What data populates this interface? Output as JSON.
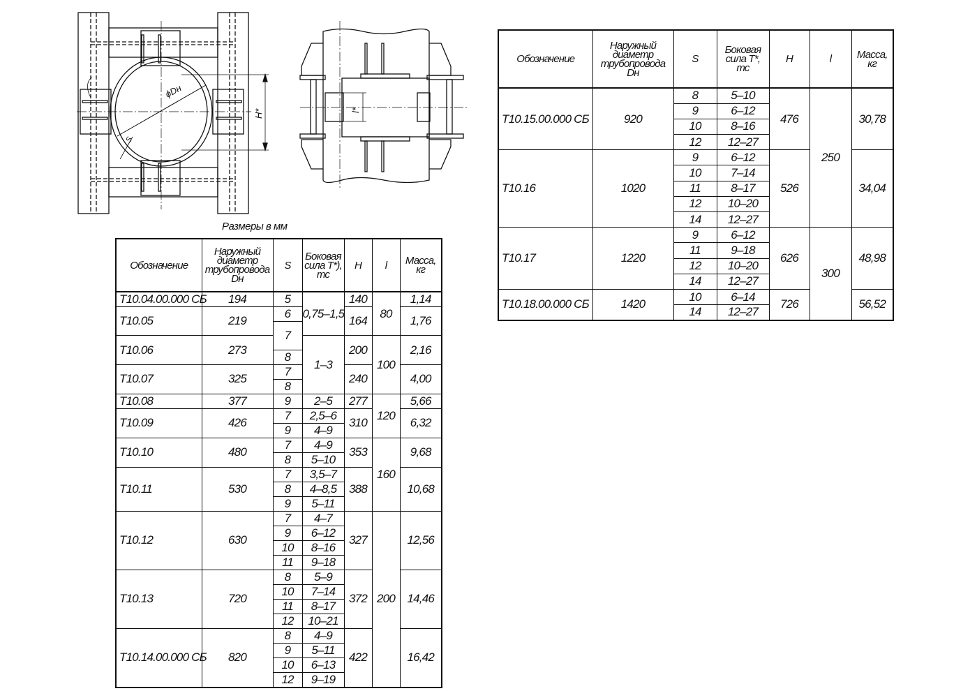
{
  "drawing": {
    "labels": {
      "diameter": "ϕDн",
      "height": "H*",
      "length": "l*",
      "thickness": "S"
    },
    "caption": "Размеры в мм"
  },
  "tables": [
    {
      "id": "tl",
      "headers": [
        "Обозначение",
        "Наружный диаметр трубопровода",
        "S",
        "Боковая сила T*),",
        "H",
        "l",
        "Масса, кг"
      ],
      "header_sub": {
        "diameter": "Dн",
        "force_unit": "тс"
      },
      "columns": {
        "designation": [
          {
            "v": "Т10.04.00.000 СБ",
            "span": 1
          },
          {
            "v": "Т10.05",
            "span": 2
          },
          {
            "v": "Т10.06",
            "span": 2
          },
          {
            "v": "Т10.07",
            "span": 2
          },
          {
            "v": "Т10.08",
            "span": 1
          },
          {
            "v": "Т10.09",
            "span": 2
          },
          {
            "v": "Т10.10",
            "span": 2
          },
          {
            "v": "Т10.11",
            "span": 3
          },
          {
            "v": "Т10.12",
            "span": 4
          },
          {
            "v": "Т10.13",
            "span": 4
          },
          {
            "v": "Т10.14.00.000 СБ",
            "span": 4
          }
        ],
        "diameter": [
          {
            "v": "194",
            "span": 1
          },
          {
            "v": "219",
            "span": 2
          },
          {
            "v": "273",
            "span": 2
          },
          {
            "v": "325",
            "span": 2
          },
          {
            "v": "377",
            "span": 1
          },
          {
            "v": "426",
            "span": 2
          },
          {
            "v": "480",
            "span": 2
          },
          {
            "v": "530",
            "span": 3
          },
          {
            "v": "630",
            "span": 4
          },
          {
            "v": "720",
            "span": 4
          },
          {
            "v": "820",
            "span": 4
          }
        ],
        "s": [
          {
            "v": "5",
            "span": 1
          },
          {
            "v": "6",
            "span": 1
          },
          {
            "v": "7",
            "span": 2
          },
          {
            "v": "8",
            "span": 1
          },
          {
            "v": "7",
            "span": 1
          },
          {
            "v": "8",
            "span": 1
          },
          {
            "v": "9",
            "span": 1
          },
          {
            "v": "7",
            "span": 1
          },
          {
            "v": "9",
            "span": 1
          },
          {
            "v": "7",
            "span": 1
          },
          {
            "v": "8",
            "span": 1
          },
          {
            "v": "7",
            "span": 1
          },
          {
            "v": "8",
            "span": 1
          },
          {
            "v": "9",
            "span": 1
          },
          {
            "v": "7",
            "span": 1
          },
          {
            "v": "9",
            "span": 1
          },
          {
            "v": "10",
            "span": 1
          },
          {
            "v": "11",
            "span": 1
          },
          {
            "v": "8",
            "span": 1
          },
          {
            "v": "10",
            "span": 1
          },
          {
            "v": "11",
            "span": 1
          },
          {
            "v": "12",
            "span": 1
          },
          {
            "v": "8",
            "span": 1
          },
          {
            "v": "9",
            "span": 1
          },
          {
            "v": "10",
            "span": 1
          },
          {
            "v": "12",
            "span": 1
          }
        ],
        "force": [
          {
            "v": "0,75–1,5",
            "span": 3
          },
          {
            "v": "1–3",
            "span": 4
          },
          {
            "v": "2–5",
            "span": 1
          },
          {
            "v": "2,5–6",
            "span": 1
          },
          {
            "v": "4–9",
            "span": 1
          },
          {
            "v": "4–9",
            "span": 1
          },
          {
            "v": "5–10",
            "span": 1
          },
          {
            "v": "3,5–7",
            "span": 1
          },
          {
            "v": "4–8,5",
            "span": 1
          },
          {
            "v": "5–11",
            "span": 1
          },
          {
            "v": "4–7",
            "span": 1
          },
          {
            "v": "6–12",
            "span": 1
          },
          {
            "v": "8–16",
            "span": 1
          },
          {
            "v": "9–18",
            "span": 1
          },
          {
            "v": "5–9",
            "span": 1
          },
          {
            "v": "7–14",
            "span": 1
          },
          {
            "v": "8–17",
            "span": 1
          },
          {
            "v": "10–21",
            "span": 1
          },
          {
            "v": "4–9",
            "span": 1
          },
          {
            "v": "5–11",
            "span": 1
          },
          {
            "v": "6–13",
            "span": 1
          },
          {
            "v": "9–19",
            "span": 1
          }
        ],
        "h": [
          {
            "v": "140",
            "span": 1
          },
          {
            "v": "164",
            "span": 2
          },
          {
            "v": "200",
            "span": 2
          },
          {
            "v": "240",
            "span": 2
          },
          {
            "v": "277",
            "span": 1
          },
          {
            "v": "310",
            "span": 2
          },
          {
            "v": "353",
            "span": 2
          },
          {
            "v": "388",
            "span": 3
          },
          {
            "v": "327",
            "span": 4
          },
          {
            "v": "372",
            "span": 4
          },
          {
            "v": "422",
            "span": 4
          }
        ],
        "l": [
          {
            "v": "80",
            "span": 3
          },
          {
            "v": "100",
            "span": 4
          },
          {
            "v": "120",
            "span": 3
          },
          {
            "v": "160",
            "span": 5
          },
          {
            "v": "200",
            "span": 12
          }
        ],
        "mass": [
          {
            "v": "1,14",
            "span": 1
          },
          {
            "v": "1,76",
            "span": 2
          },
          {
            "v": "2,16",
            "span": 2
          },
          {
            "v": "4,00",
            "span": 2
          },
          {
            "v": "5,66",
            "span": 1
          },
          {
            "v": "6,32",
            "span": 2
          },
          {
            "v": "9,68",
            "span": 2
          },
          {
            "v": "10,68",
            "span": 3
          },
          {
            "v": "12,56",
            "span": 4
          },
          {
            "v": "14,46",
            "span": 4
          },
          {
            "v": "16,42",
            "span": 4
          }
        ]
      }
    },
    {
      "id": "tr",
      "headers": [
        "Обозначение",
        "Наружный диаметр трубопровода",
        "S",
        "Боковая сила T*,",
        "H",
        "l",
        "Масса, кг"
      ],
      "header_sub": {
        "diameter": "Dн",
        "force_unit": "тс"
      },
      "columns": {
        "designation": [
          {
            "v": "Т10.15.00.000 СБ",
            "span": 4
          },
          {
            "v": "Т10.16",
            "span": 5
          },
          {
            "v": "Т10.17",
            "span": 4
          },
          {
            "v": "Т10.18.00.000 СБ",
            "span": 2
          }
        ],
        "diameter": [
          {
            "v": "920",
            "span": 4
          },
          {
            "v": "1020",
            "span": 5
          },
          {
            "v": "1220",
            "span": 4
          },
          {
            "v": "1420",
            "span": 2
          }
        ],
        "s": [
          {
            "v": "8",
            "span": 1
          },
          {
            "v": "9",
            "span": 1
          },
          {
            "v": "10",
            "span": 1
          },
          {
            "v": "12",
            "span": 1
          },
          {
            "v": "9",
            "span": 1
          },
          {
            "v": "10",
            "span": 1
          },
          {
            "v": "11",
            "span": 1
          },
          {
            "v": "12",
            "span": 1
          },
          {
            "v": "14",
            "span": 1
          },
          {
            "v": "9",
            "span": 1
          },
          {
            "v": "11",
            "span": 1
          },
          {
            "v": "12",
            "span": 1
          },
          {
            "v": "14",
            "span": 1
          },
          {
            "v": "10",
            "span": 1
          },
          {
            "v": "14",
            "span": 1
          }
        ],
        "force": [
          {
            "v": "5–10",
            "span": 1
          },
          {
            "v": "6–12",
            "span": 1
          },
          {
            "v": "8–16",
            "span": 1
          },
          {
            "v": "12–27",
            "span": 1
          },
          {
            "v": "6–12",
            "span": 1
          },
          {
            "v": "7–14",
            "span": 1
          },
          {
            "v": "8–17",
            "span": 1
          },
          {
            "v": "10–20",
            "span": 1
          },
          {
            "v": "12–27",
            "span": 1
          },
          {
            "v": "6–12",
            "span": 1
          },
          {
            "v": "9–18",
            "span": 1
          },
          {
            "v": "10–20",
            "span": 1
          },
          {
            "v": "12–27",
            "span": 1
          },
          {
            "v": "6–14",
            "span": 1
          },
          {
            "v": "12–27",
            "span": 1
          }
        ],
        "h": [
          {
            "v": "476",
            "span": 4
          },
          {
            "v": "526",
            "span": 5
          },
          {
            "v": "626",
            "span": 4
          },
          {
            "v": "726",
            "span": 2
          }
        ],
        "l": [
          {
            "v": "250",
            "span": 9
          },
          {
            "v": "300",
            "span": 6
          }
        ],
        "mass": [
          {
            "v": "30,78",
            "span": 4
          },
          {
            "v": "34,04",
            "span": 5
          },
          {
            "v": "48,98",
            "span": 4
          },
          {
            "v": "56,52",
            "span": 2
          }
        ]
      }
    }
  ]
}
